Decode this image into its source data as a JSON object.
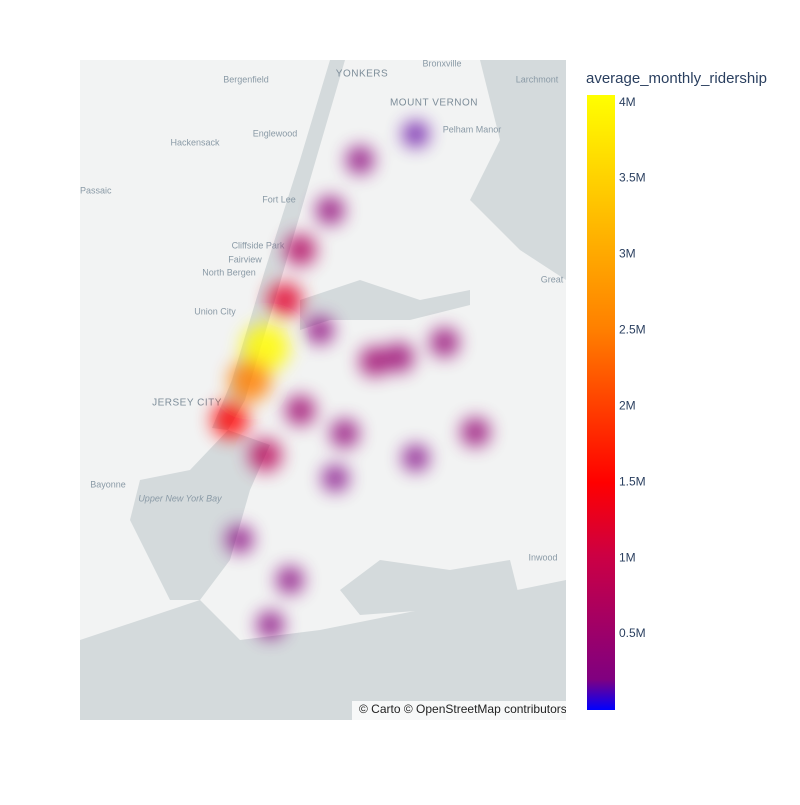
{
  "map": {
    "style": "carto-positron",
    "center": {
      "lon": -73.94,
      "lat": 40.73
    },
    "zoom": 9.5,
    "labels": [
      "Bergenfield",
      "YONKERS",
      "Bronxville",
      "Larchmont",
      "MOUNT VERNON",
      "Pelham Manor",
      "Englewood",
      "Hackensack",
      "Passaic",
      "Fort Lee",
      "Cliffside Park",
      "Fairview",
      "North Bergen",
      "Great",
      "Union City",
      "JERSEY CITY",
      "Bayonne",
      "Upper New York Bay",
      "Inwood"
    ],
    "attribution": "© Carto © OpenStreetMap contributors"
  },
  "chart_data": {
    "type": "density_map",
    "colorbar": {
      "title": "average_monthly_ridership",
      "range": [
        0,
        4050000
      ],
      "ticks": [
        {
          "value": 500000,
          "label": "0.5M"
        },
        {
          "value": 1000000,
          "label": "1M"
        },
        {
          "value": 1500000,
          "label": "1.5M"
        },
        {
          "value": 2000000,
          "label": "2M"
        },
        {
          "value": 2500000,
          "label": "2.5M"
        },
        {
          "value": 3000000,
          "label": "3M"
        },
        {
          "value": 3500000,
          "label": "3.5M"
        },
        {
          "value": 4000000,
          "label": "4M"
        }
      ],
      "colorscale": [
        [
          0,
          "#0000ff"
        ],
        [
          0.05,
          "#800080"
        ],
        [
          0.25,
          "#cc0044"
        ],
        [
          0.37,
          "#ff0000"
        ],
        [
          0.62,
          "#ff8000"
        ],
        [
          1,
          "#ffff00"
        ]
      ]
    },
    "points": [
      {
        "lon": -73.996,
        "lat": 40.761,
        "value": 4000000
      },
      {
        "lon": -74.011,
        "lat": 40.737,
        "value": 2500000
      },
      {
        "lon": -74.03,
        "lat": 40.708,
        "value": 1500000
      },
      {
        "lon": -73.977,
        "lat": 40.796,
        "value": 1200000
      },
      {
        "lon": -73.962,
        "lat": 40.833,
        "value": 700000
      },
      {
        "lon": -73.996,
        "lat": 40.682,
        "value": 800000
      },
      {
        "lon": -73.962,
        "lat": 40.715,
        "value": 500000
      },
      {
        "lon": -73.89,
        "lat": 40.751,
        "value": 500000
      },
      {
        "lon": -73.866,
        "lat": 40.754,
        "value": 450000
      },
      {
        "lon": -73.822,
        "lat": 40.765,
        "value": 400000
      },
      {
        "lon": -73.792,
        "lat": 40.699,
        "value": 400000
      },
      {
        "lon": -73.919,
        "lat": 40.698,
        "value": 350000
      },
      {
        "lon": -73.933,
        "lat": 40.862,
        "value": 350000
      },
      {
        "lon": -73.904,
        "lat": 40.899,
        "value": 300000
      },
      {
        "lon": -73.943,
        "lat": 40.774,
        "value": 300000
      },
      {
        "lon": -74.021,
        "lat": 40.62,
        "value": 250000
      },
      {
        "lon": -73.972,
        "lat": 40.59,
        "value": 250000
      },
      {
        "lon": -73.991,
        "lat": 40.557,
        "value": 250000
      },
      {
        "lon": -73.85,
        "lat": 40.68,
        "value": 200000
      },
      {
        "lon": -73.928,
        "lat": 40.665,
        "value": 200000
      },
      {
        "lon": -73.85,
        "lat": 40.918,
        "value": 150000
      }
    ]
  }
}
